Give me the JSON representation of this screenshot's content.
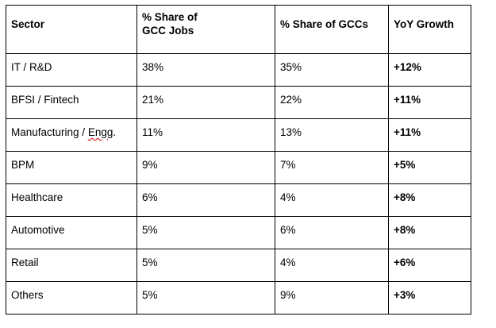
{
  "table": {
    "headers": {
      "sector": "Sector",
      "jobs_line1": "% Share of",
      "jobs_line2": "GCC Jobs",
      "gccs": "% Share of GCCs",
      "yoy": "YoY Growth"
    },
    "rows": [
      {
        "sector": "IT / R&D",
        "jobs": "38%",
        "gccs": "35%",
        "yoy": "+12%"
      },
      {
        "sector": "BFSI / Fintech",
        "jobs": "21%",
        "gccs": "22%",
        "yoy": "+11%"
      },
      {
        "sector_main": "Manufacturing / ",
        "sector_flagged": "Engg",
        "sector_tail": ".",
        "jobs": "11%",
        "gccs": "13%",
        "yoy": "+11%"
      },
      {
        "sector": "BPM",
        "jobs": "9%",
        "gccs": "7%",
        "yoy": "+5%"
      },
      {
        "sector": "Healthcare",
        "jobs": "6%",
        "gccs": "4%",
        "yoy": "+8%"
      },
      {
        "sector": "Automotive",
        "jobs": "5%",
        "gccs": "6%",
        "yoy": "+8%"
      },
      {
        "sector": "Retail",
        "jobs": "5%",
        "gccs": "4%",
        "yoy": "+6%"
      },
      {
        "sector": "Others",
        "jobs": "5%",
        "gccs": "9%",
        "yoy": "+3%"
      }
    ]
  }
}
